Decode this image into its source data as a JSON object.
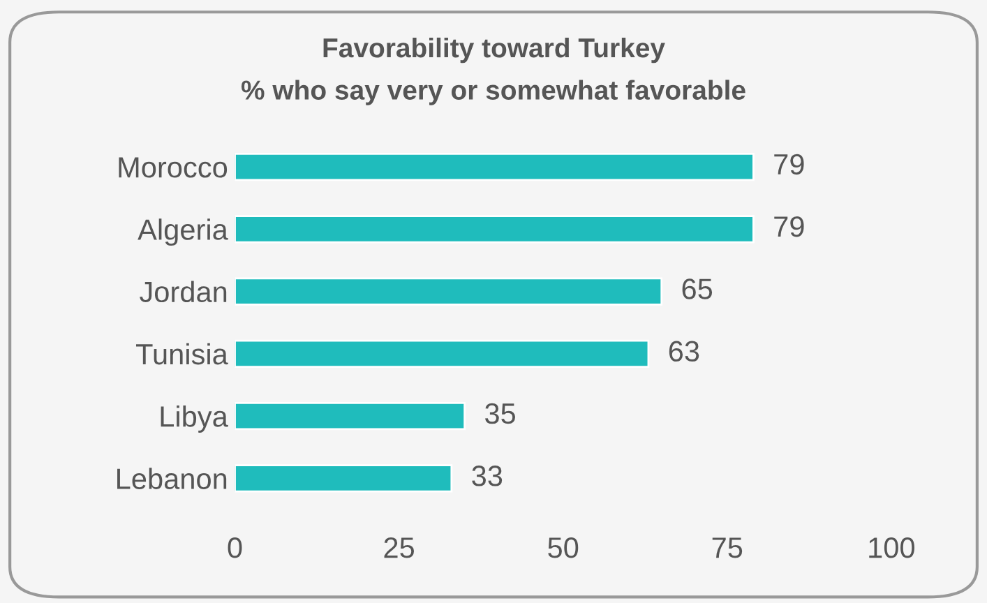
{
  "chart_data": {
    "type": "bar",
    "orientation": "horizontal",
    "title": "Favorability toward Turkey",
    "subtitle": "% who say very or somewhat favorable",
    "categories": [
      "Morocco",
      "Algeria",
      "Jordan",
      "Tunisia",
      "Libya",
      "Lebanon"
    ],
    "values": [
      79,
      79,
      65,
      63,
      35,
      33
    ],
    "color": "#1fbcbc",
    "xlim": [
      0,
      100
    ],
    "xticks": [
      0,
      25,
      50,
      75,
      100
    ],
    "grid": false,
    "data_labels": true
  }
}
